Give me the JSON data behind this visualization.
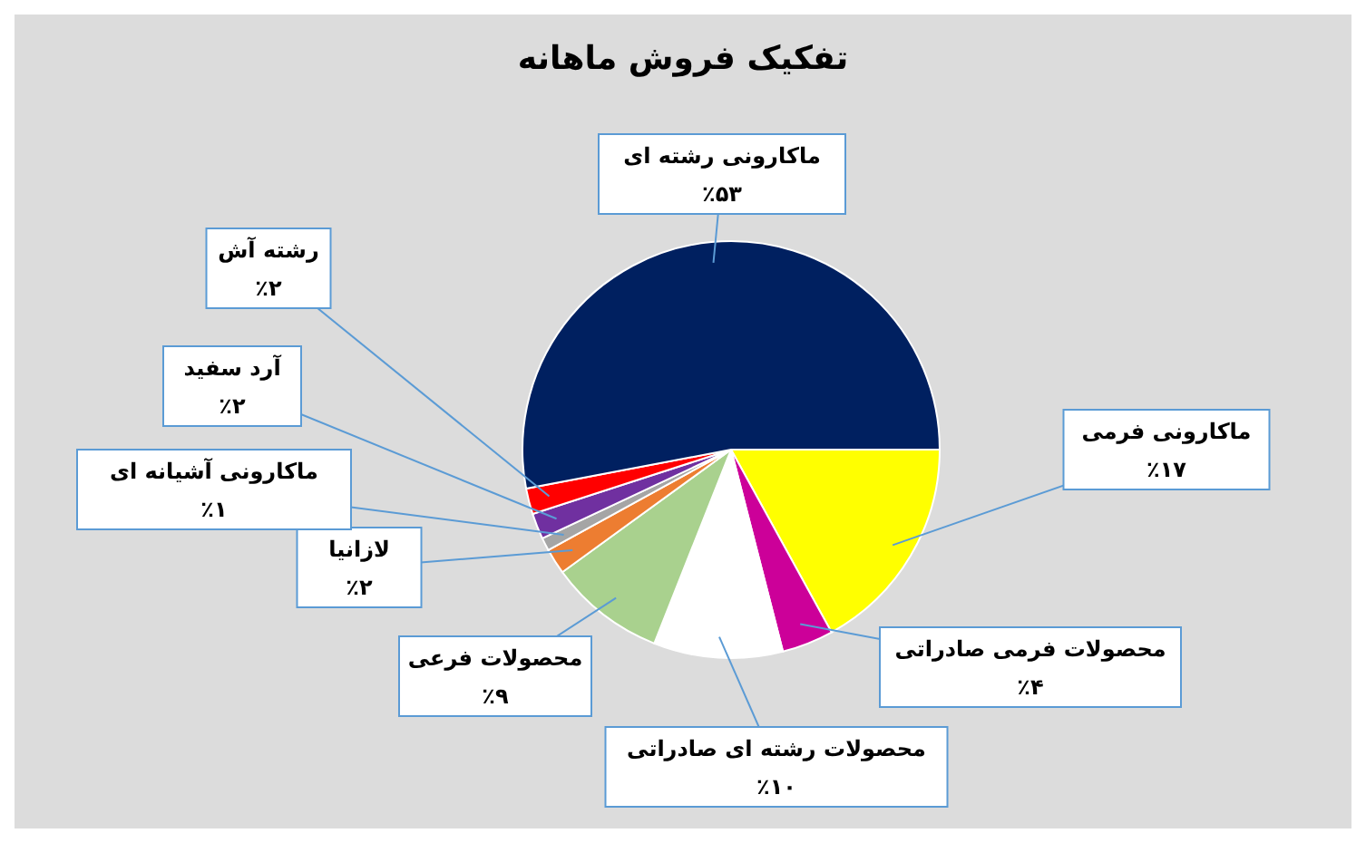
{
  "chart_data": {
    "type": "pie",
    "title": "تفکیک فروش ماهانه",
    "categories": [
      "ماکارونی فرمی",
      "محصولات فرمی صادراتی",
      "محصولات رشته ای صادراتی",
      "محصولات فرعی",
      "لازانیا",
      "ماکارونی آشیانه ای",
      "آرد سفید",
      "رشته آش",
      "ماکارونی رشته ای"
    ],
    "values": [
      17,
      4,
      10,
      9,
      2,
      1,
      2,
      2,
      53
    ],
    "value_labels": [
      "٪۱۷",
      "٪۴",
      "٪۱۰",
      "٪۹",
      "٪۲",
      "٪۱",
      "٪۲",
      "٪۲",
      "٪۵۳"
    ],
    "colors": [
      "#ffff00",
      "#cc0099",
      "#ffffff",
      "#a9d18e",
      "#ed7d31",
      "#a5a5a5",
      "#7030a0",
      "#ff0000",
      "#002060"
    ],
    "legend": false
  }
}
